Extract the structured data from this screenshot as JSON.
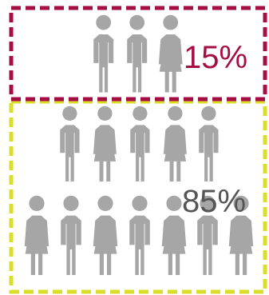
{
  "groups": [
    {
      "label": "15%",
      "value": 15,
      "border_color": "#A50D45",
      "label_color": "#A50D45",
      "people_count": 3
    },
    {
      "label": "85%",
      "value": 85,
      "border_color": "#DADD2A",
      "label_color": "#555555",
      "people_count": 12
    }
  ],
  "person_color": "#A6A6A6",
  "icons": {
    "male": "person-male-icon",
    "female": "person-female-icon"
  }
}
